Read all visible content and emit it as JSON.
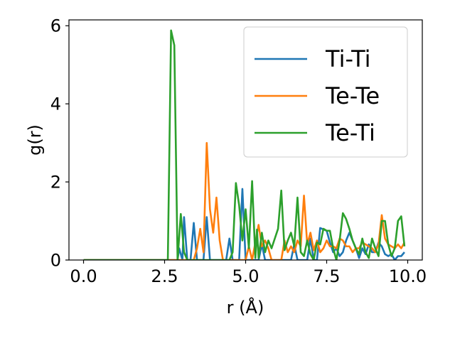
{
  "chart_data": {
    "type": "line",
    "title": "",
    "xlabel": "r (Å)",
    "ylabel": "g(r)",
    "xlim": [
      -0.45,
      10.45
    ],
    "ylim": [
      0,
      6.15
    ],
    "xticks": [
      0.0,
      2.5,
      5.0,
      7.5,
      10.0
    ],
    "xtick_labels": [
      "0.0",
      "2.5",
      "5.0",
      "7.5",
      "10.0"
    ],
    "yticks": [
      0,
      2,
      4,
      6
    ],
    "ytick_labels": [
      "0",
      "2",
      "4",
      "6"
    ],
    "grid": false,
    "legend_position": "upper right",
    "series": [
      {
        "name": "Ti-Ti",
        "color": "#1f77b4",
        "points": [
          [
            0,
            0
          ],
          [
            2.9,
            0
          ],
          [
            2.95,
            0.3
          ],
          [
            3.05,
            0
          ],
          [
            3.1,
            1.1
          ],
          [
            3.2,
            0
          ],
          [
            3.3,
            0
          ],
          [
            3.4,
            0.95
          ],
          [
            3.5,
            0
          ],
          [
            3.7,
            0
          ],
          [
            3.8,
            1.1
          ],
          [
            3.9,
            0
          ],
          [
            4.4,
            0
          ],
          [
            4.5,
            0.55
          ],
          [
            4.6,
            0
          ],
          [
            4.8,
            0
          ],
          [
            4.9,
            1.82
          ],
          [
            5.0,
            0
          ],
          [
            5.4,
            0
          ],
          [
            5.5,
            0.4
          ],
          [
            5.6,
            0
          ],
          [
            6.4,
            0
          ],
          [
            6.5,
            0.4
          ],
          [
            6.6,
            0
          ],
          [
            6.9,
            0
          ],
          [
            7.0,
            0.55
          ],
          [
            7.1,
            0
          ],
          [
            7.2,
            0
          ],
          [
            7.3,
            0.82
          ],
          [
            7.5,
            0.75
          ],
          [
            7.6,
            0.45
          ],
          [
            7.7,
            0.2
          ],
          [
            7.8,
            0.3
          ],
          [
            7.9,
            0.1
          ],
          [
            8.0,
            0.2
          ],
          [
            8.1,
            0.5
          ],
          [
            8.2,
            0.7
          ],
          [
            8.3,
            0.5
          ],
          [
            8.4,
            0.3
          ],
          [
            8.5,
            0.05
          ],
          [
            8.6,
            0.3
          ],
          [
            8.7,
            0.15
          ],
          [
            8.8,
            0.4
          ],
          [
            8.9,
            0.2
          ],
          [
            9.0,
            0.2
          ],
          [
            9.1,
            0.45
          ],
          [
            9.2,
            0.35
          ],
          [
            9.3,
            0.15
          ],
          [
            9.4,
            0.1
          ],
          [
            9.5,
            0.15
          ],
          [
            9.6,
            0.0
          ],
          [
            9.7,
            0.1
          ],
          [
            9.8,
            0.1
          ],
          [
            9.9,
            0.2
          ]
        ]
      },
      {
        "name": "Te-Te",
        "color": "#ff7f0e",
        "points": [
          [
            0,
            0
          ],
          [
            3.4,
            0
          ],
          [
            3.5,
            0.3
          ],
          [
            3.6,
            0.8
          ],
          [
            3.7,
            0.2
          ],
          [
            3.8,
            3.0
          ],
          [
            3.9,
            1.3
          ],
          [
            4.0,
            0.7
          ],
          [
            4.1,
            1.6
          ],
          [
            4.2,
            0.5
          ],
          [
            4.3,
            0
          ],
          [
            5.0,
            0
          ],
          [
            5.1,
            0.35
          ],
          [
            5.2,
            0
          ],
          [
            5.3,
            0.45
          ],
          [
            5.4,
            0.9
          ],
          [
            5.5,
            0.35
          ],
          [
            5.6,
            0.5
          ],
          [
            5.7,
            0.3
          ],
          [
            5.8,
            0
          ],
          [
            6.1,
            0
          ],
          [
            6.2,
            0.5
          ],
          [
            6.3,
            0.2
          ],
          [
            6.4,
            0.35
          ],
          [
            6.5,
            0.2
          ],
          [
            6.6,
            0.5
          ],
          [
            6.7,
            0.35
          ],
          [
            6.8,
            1.65
          ],
          [
            6.9,
            0.4
          ],
          [
            7.0,
            0.7
          ],
          [
            7.1,
            0.25
          ],
          [
            7.2,
            0.5
          ],
          [
            7.3,
            0.2
          ],
          [
            7.4,
            0.3
          ],
          [
            7.5,
            0.5
          ],
          [
            7.6,
            0.35
          ],
          [
            7.7,
            0.35
          ],
          [
            7.8,
            0.3
          ],
          [
            7.9,
            0.55
          ],
          [
            8.0,
            0.5
          ],
          [
            8.1,
            0.35
          ],
          [
            8.2,
            0.35
          ],
          [
            8.3,
            0.2
          ],
          [
            8.4,
            0.3
          ],
          [
            8.5,
            0.3
          ],
          [
            8.6,
            0.45
          ],
          [
            8.7,
            0.4
          ],
          [
            8.8,
            0.35
          ],
          [
            8.9,
            0.3
          ],
          [
            9.0,
            0.2
          ],
          [
            9.1,
            0.4
          ],
          [
            9.2,
            1.15
          ],
          [
            9.3,
            0.55
          ],
          [
            9.4,
            0.4
          ],
          [
            9.5,
            0.35
          ],
          [
            9.6,
            0.3
          ],
          [
            9.7,
            0.4
          ],
          [
            9.8,
            0.3
          ],
          [
            9.9,
            0.45
          ]
        ]
      },
      {
        "name": "Te-Ti",
        "color": "#2ca02c",
        "points": [
          [
            0,
            0
          ],
          [
            2.6,
            0
          ],
          [
            2.7,
            5.88
          ],
          [
            2.8,
            5.5
          ],
          [
            2.9,
            0
          ],
          [
            3.0,
            1.18
          ],
          [
            3.1,
            0.2
          ],
          [
            3.2,
            0
          ],
          [
            4.5,
            0
          ],
          [
            4.6,
            0.2
          ],
          [
            4.7,
            1.97
          ],
          [
            4.8,
            1.4
          ],
          [
            4.9,
            0.5
          ],
          [
            5.0,
            1.3
          ],
          [
            5.1,
            0.3
          ],
          [
            5.2,
            2.02
          ],
          [
            5.3,
            0.05
          ],
          [
            5.35,
            0.78
          ],
          [
            5.4,
            0.05
          ],
          [
            5.5,
            0.7
          ],
          [
            5.6,
            0.2
          ],
          [
            5.7,
            0.5
          ],
          [
            5.8,
            0.3
          ],
          [
            5.9,
            0.55
          ],
          [
            6.0,
            0.8
          ],
          [
            6.1,
            1.78
          ],
          [
            6.2,
            0.25
          ],
          [
            6.3,
            0.5
          ],
          [
            6.4,
            0.7
          ],
          [
            6.5,
            0.35
          ],
          [
            6.6,
            1.6
          ],
          [
            6.7,
            0.2
          ],
          [
            6.8,
            0.1
          ],
          [
            6.9,
            0.5
          ],
          [
            7.0,
            0.15
          ],
          [
            7.1,
            0.0
          ],
          [
            7.2,
            0.45
          ],
          [
            7.3,
            0.4
          ],
          [
            7.4,
            0.8
          ],
          [
            7.5,
            0.75
          ],
          [
            7.6,
            0.75
          ],
          [
            7.7,
            0.3
          ],
          [
            7.8,
            0.0
          ],
          [
            7.9,
            0.5
          ],
          [
            8.0,
            1.2
          ],
          [
            8.1,
            1.05
          ],
          [
            8.2,
            0.8
          ],
          [
            8.3,
            0.5
          ],
          [
            8.4,
            0.3
          ],
          [
            8.5,
            0.15
          ],
          [
            8.6,
            0.55
          ],
          [
            8.7,
            0.2
          ],
          [
            8.8,
            0.05
          ],
          [
            8.9,
            0.55
          ],
          [
            9.0,
            0.3
          ],
          [
            9.1,
            0.1
          ],
          [
            9.2,
            1.0
          ],
          [
            9.3,
            1.0
          ],
          [
            9.4,
            0.4
          ],
          [
            9.5,
            0.1
          ],
          [
            9.6,
            0.3
          ],
          [
            9.7,
            1.0
          ],
          [
            9.8,
            1.12
          ],
          [
            9.9,
            0.35
          ]
        ]
      }
    ]
  }
}
